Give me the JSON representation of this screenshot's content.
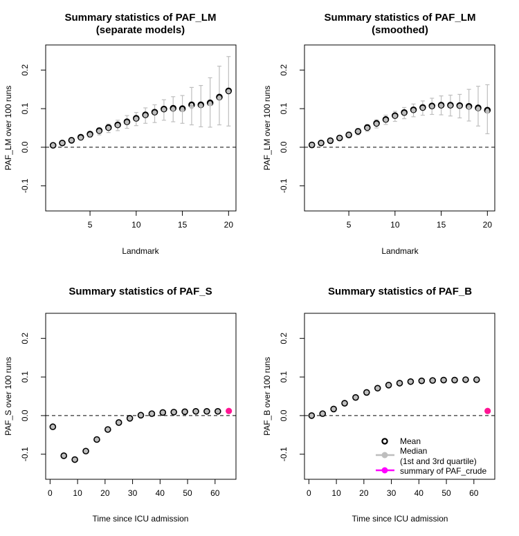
{
  "colors": {
    "mean": "#000000",
    "median": "#bebebe",
    "crude": "#ff1493",
    "crude_legend": "#ff00ff"
  },
  "chart_data": [
    {
      "type": "scatter",
      "title": "Summary statistics of PAF_LM",
      "subtitle": "(separate models)",
      "xlabel": "Landmark",
      "ylabel": "PAF_LM over 100 runs",
      "xlim": [
        0.2,
        20.8
      ],
      "ylim": [
        -0.165,
        0.265
      ],
      "xticks": [
        5,
        10,
        15,
        20
      ],
      "yticks": [
        -0.1,
        0.0,
        0.1,
        0.2
      ],
      "xtick_labels": [
        "5",
        "10",
        "15",
        "20"
      ],
      "ytick_labels": [
        "-0.1",
        "0.0",
        "0.1",
        "0.2"
      ],
      "reference_line": 0,
      "x": [
        1,
        2,
        3,
        4,
        5,
        6,
        7,
        8,
        9,
        10,
        11,
        12,
        13,
        14,
        15,
        16,
        17,
        18,
        19,
        20
      ],
      "mean": [
        0.005,
        0.011,
        0.018,
        0.026,
        0.034,
        0.043,
        0.051,
        0.058,
        0.066,
        0.075,
        0.084,
        0.091,
        0.099,
        0.101,
        0.1,
        0.11,
        0.11,
        0.115,
        0.13,
        0.146
      ],
      "median": [
        0.005,
        0.011,
        0.018,
        0.025,
        0.033,
        0.042,
        0.05,
        0.057,
        0.065,
        0.074,
        0.083,
        0.09,
        0.098,
        0.099,
        0.097,
        0.105,
        0.108,
        0.112,
        0.128,
        0.145
      ],
      "q1": [
        0.002,
        0.007,
        0.013,
        0.019,
        0.026,
        0.032,
        0.038,
        0.043,
        0.049,
        0.056,
        0.062,
        0.064,
        0.07,
        0.066,
        0.062,
        0.058,
        0.053,
        0.052,
        0.058,
        0.055
      ],
      "q3": [
        0.009,
        0.015,
        0.023,
        0.031,
        0.04,
        0.05,
        0.06,
        0.07,
        0.082,
        0.09,
        0.102,
        0.11,
        0.123,
        0.131,
        0.134,
        0.155,
        0.16,
        0.18,
        0.21,
        0.235
      ],
      "crude": null
    },
    {
      "type": "scatter",
      "title": "Summary statistics of PAF_LM",
      "subtitle": "(smoothed)",
      "xlabel": "Landmark",
      "ylabel": "PAF_LM over 100 runs",
      "xlim": [
        0.2,
        20.8
      ],
      "ylim": [
        -0.165,
        0.265
      ],
      "xticks": [
        5,
        10,
        15,
        20
      ],
      "yticks": [
        -0.1,
        0.0,
        0.1,
        0.2
      ],
      "xtick_labels": [
        "5",
        "10",
        "15",
        "20"
      ],
      "ytick_labels": [
        "-0.1",
        "0.0",
        "0.1",
        "0.2"
      ],
      "reference_line": 0,
      "x": [
        1,
        2,
        3,
        4,
        5,
        6,
        7,
        8,
        9,
        10,
        11,
        12,
        13,
        14,
        15,
        16,
        17,
        18,
        19,
        20
      ],
      "mean": [
        0.006,
        0.011,
        0.017,
        0.024,
        0.032,
        0.041,
        0.051,
        0.062,
        0.072,
        0.082,
        0.09,
        0.097,
        0.103,
        0.107,
        0.109,
        0.109,
        0.108,
        0.106,
        0.102,
        0.096
      ],
      "median": [
        0.006,
        0.011,
        0.017,
        0.024,
        0.032,
        0.041,
        0.05,
        0.061,
        0.071,
        0.081,
        0.089,
        0.096,
        0.102,
        0.106,
        0.108,
        0.108,
        0.107,
        0.104,
        0.1,
        0.093
      ],
      "q1": [
        0.003,
        0.007,
        0.012,
        0.018,
        0.025,
        0.032,
        0.041,
        0.05,
        0.059,
        0.067,
        0.074,
        0.079,
        0.083,
        0.085,
        0.084,
        0.081,
        0.076,
        0.068,
        0.055,
        0.035
      ],
      "q3": [
        0.009,
        0.015,
        0.022,
        0.03,
        0.039,
        0.049,
        0.059,
        0.071,
        0.083,
        0.093,
        0.103,
        0.112,
        0.12,
        0.127,
        0.133,
        0.135,
        0.137,
        0.15,
        0.158,
        0.162
      ],
      "crude": null
    },
    {
      "type": "scatter",
      "title": "Summary statistics of PAF_S",
      "subtitle": "",
      "xlabel": "Time since ICU admission",
      "ylabel": "PAF_S over 100 runs",
      "xlim": [
        -1.6,
        67.6
      ],
      "ylim": [
        -0.165,
        0.265
      ],
      "xticks": [
        0,
        10,
        20,
        30,
        40,
        50,
        60
      ],
      "yticks": [
        -0.1,
        0.0,
        0.1,
        0.2
      ],
      "xtick_labels": [
        "0",
        "10",
        "20",
        "30",
        "40",
        "50",
        "60"
      ],
      "ytick_labels": [
        "-0.1",
        "0.0",
        "0.1",
        "0.2"
      ],
      "reference_line": 0,
      "x": [
        1,
        5,
        9,
        13,
        17,
        21,
        25,
        29,
        33,
        37,
        41,
        45,
        49,
        53,
        57,
        61
      ],
      "mean": [
        -0.029,
        -0.104,
        -0.114,
        -0.092,
        -0.062,
        -0.036,
        -0.018,
        -0.007,
        0.001,
        0.005,
        0.008,
        0.009,
        0.01,
        0.011,
        0.011,
        0.011
      ],
      "median": [
        -0.029,
        -0.104,
        -0.114,
        -0.092,
        -0.062,
        -0.036,
        -0.018,
        -0.007,
        0.001,
        0.005,
        0.008,
        0.009,
        0.01,
        0.011,
        0.011,
        0.011
      ],
      "q1": [
        -0.031,
        -0.106,
        -0.116,
        -0.094,
        -0.064,
        -0.038,
        -0.02,
        -0.009,
        -0.001,
        0.003,
        0.006,
        0.007,
        0.008,
        0.009,
        0.009,
        0.009
      ],
      "q3": [
        -0.027,
        -0.102,
        -0.112,
        -0.09,
        -0.06,
        -0.034,
        -0.016,
        -0.005,
        0.003,
        0.007,
        0.01,
        0.011,
        0.012,
        0.013,
        0.013,
        0.013
      ],
      "crude": {
        "x": 65,
        "y": 0.012
      }
    },
    {
      "type": "scatter",
      "title": "Summary statistics of PAF_B",
      "subtitle": "",
      "xlabel": "Time since ICU admission",
      "ylabel": "PAF_B over 100 runs",
      "xlim": [
        -1.6,
        67.6
      ],
      "ylim": [
        -0.165,
        0.265
      ],
      "xticks": [
        0,
        10,
        20,
        30,
        40,
        50,
        60
      ],
      "yticks": [
        -0.1,
        0.0,
        0.1,
        0.2
      ],
      "xtick_labels": [
        "0",
        "10",
        "20",
        "30",
        "40",
        "50",
        "60"
      ],
      "ytick_labels": [
        "-0.1",
        "0.0",
        "0.1",
        "0.2"
      ],
      "reference_line": 0,
      "x": [
        1,
        5,
        9,
        13,
        17,
        21,
        25,
        29,
        33,
        37,
        41,
        45,
        49,
        53,
        57,
        61
      ],
      "mean": [
        0.0,
        0.005,
        0.017,
        0.032,
        0.047,
        0.06,
        0.071,
        0.079,
        0.084,
        0.088,
        0.09,
        0.091,
        0.092,
        0.092,
        0.093,
        0.093
      ],
      "median": [
        0.0,
        0.005,
        0.017,
        0.032,
        0.047,
        0.06,
        0.071,
        0.079,
        0.084,
        0.088,
        0.09,
        0.091,
        0.092,
        0.092,
        0.093,
        0.093
      ],
      "q1": [
        -0.002,
        0.003,
        0.015,
        0.03,
        0.045,
        0.058,
        0.069,
        0.077,
        0.082,
        0.086,
        0.088,
        0.089,
        0.09,
        0.09,
        0.091,
        0.091
      ],
      "q3": [
        0.002,
        0.007,
        0.019,
        0.034,
        0.049,
        0.062,
        0.073,
        0.081,
        0.086,
        0.09,
        0.092,
        0.093,
        0.094,
        0.094,
        0.095,
        0.095
      ],
      "crude": {
        "x": 65,
        "y": 0.012
      },
      "legend": {
        "position": "bottom-right",
        "entries": [
          {
            "label": "Mean",
            "kind": "mean"
          },
          {
            "label": "Median",
            "kind": "median"
          },
          {
            "label": "(1st and 3rd quartile)",
            "kind": "median-note"
          },
          {
            "label": "summary of PAF_crude",
            "kind": "crude"
          }
        ]
      }
    }
  ]
}
